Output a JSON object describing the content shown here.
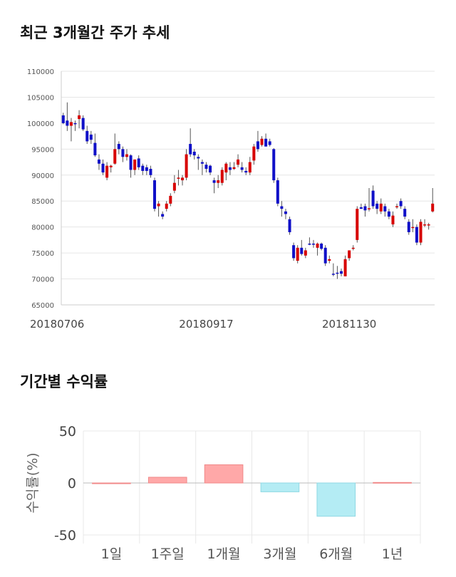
{
  "sections": {
    "candle_title": "최근 3개월간 주가 추세",
    "returns_title": "기간별 수익률"
  },
  "chart_data": [
    {
      "type": "candlestick",
      "ylim": [
        65000,
        110000
      ],
      "yticks": [
        65000,
        70000,
        75000,
        80000,
        85000,
        90000,
        95000,
        100000,
        105000,
        110000
      ],
      "xticks": [
        {
          "index": 0,
          "label": "20180706"
        },
        {
          "index": 36,
          "label": "20180917"
        },
        {
          "index": 72,
          "label": "20181130"
        }
      ],
      "colors": {
        "up": "#d70000",
        "down": "#1010c8",
        "wick": "#555555",
        "grid": "#e6e6e6"
      },
      "candles": [
        [
          101500,
          102000,
          99800,
          100000
        ],
        [
          100500,
          104000,
          98500,
          99500
        ],
        [
          99500,
          101000,
          96500,
          100200
        ],
        [
          100000,
          100500,
          98500,
          99800
        ],
        [
          100800,
          102500,
          99000,
          101500
        ],
        [
          101000,
          101500,
          98500,
          98800
        ],
        [
          98500,
          99500,
          96000,
          96500
        ],
        [
          97800,
          98500,
          96000,
          96800
        ],
        [
          96200,
          98000,
          93500,
          93800
        ],
        [
          93000,
          94000,
          91000,
          92200
        ],
        [
          92200,
          93000,
          90000,
          90500
        ],
        [
          89500,
          92500,
          89000,
          91800
        ],
        [
          91500,
          92000,
          90500,
          91800
        ],
        [
          92200,
          98000,
          92000,
          95000
        ],
        [
          96000,
          96500,
          94000,
          95000
        ],
        [
          95000,
          95500,
          92500,
          93500
        ],
        [
          93500,
          95000,
          92800,
          94000
        ],
        [
          93800,
          94000,
          89500,
          91000
        ],
        [
          91000,
          93000,
          90000,
          93000
        ],
        [
          93200,
          93800,
          91000,
          91500
        ],
        [
          91800,
          92200,
          90000,
          90800
        ],
        [
          91500,
          92000,
          90000,
          90800
        ],
        [
          91200,
          91800,
          89500,
          90000
        ],
        [
          89000,
          89500,
          83000,
          83500
        ],
        [
          84000,
          85000,
          82000,
          84500
        ],
        [
          82500,
          83000,
          81500,
          82000
        ],
        [
          83500,
          85000,
          83000,
          84500
        ],
        [
          84500,
          86500,
          84000,
          86000
        ],
        [
          87000,
          90000,
          86500,
          88500
        ],
        [
          89500,
          91000,
          88000,
          89500
        ],
        [
          89000,
          90000,
          88000,
          89500
        ],
        [
          89500,
          95000,
          89000,
          94000
        ],
        [
          96000,
          99000,
          93500,
          94000
        ],
        [
          94500,
          95000,
          93000,
          93800
        ],
        [
          93500,
          94000,
          91000,
          93200
        ],
        [
          92500,
          93000,
          90000,
          92200
        ],
        [
          92000,
          92500,
          90500,
          91200
        ],
        [
          91800,
          92000,
          90000,
          90500
        ],
        [
          89000,
          89500,
          86500,
          88500
        ],
        [
          88500,
          90000,
          87500,
          89000
        ],
        [
          88500,
          91500,
          88000,
          91000
        ],
        [
          90500,
          92500,
          89000,
          92200
        ],
        [
          91500,
          92500,
          90000,
          91000
        ],
        [
          91200,
          92500,
          91000,
          91500
        ],
        [
          92000,
          94000,
          91500,
          93000
        ],
        [
          91500,
          92500,
          90500,
          91000
        ],
        [
          90800,
          91500,
          90000,
          90500
        ],
        [
          90500,
          93500,
          90000,
          92500
        ],
        [
          92800,
          96000,
          92000,
          95500
        ],
        [
          96500,
          98500,
          94500,
          95000
        ],
        [
          95800,
          97500,
          95500,
          97000
        ],
        [
          97000,
          98000,
          95500,
          95500
        ],
        [
          96500,
          97000,
          95500,
          95800
        ],
        [
          95000,
          95200,
          88500,
          89000
        ],
        [
          89000,
          89500,
          84000,
          84500
        ],
        [
          84000,
          85000,
          82000,
          83500
        ],
        [
          83000,
          83500,
          81500,
          82500
        ],
        [
          81500,
          82000,
          78500,
          79000
        ],
        [
          76500,
          77000,
          73500,
          74000
        ],
        [
          73500,
          76500,
          73000,
          76000
        ],
        [
          76000,
          77500,
          74500,
          74800
        ],
        [
          74500,
          76000,
          74000,
          75500
        ],
        [
          76800,
          78000,
          76500,
          76600
        ],
        [
          76800,
          77500,
          76000,
          76600
        ],
        [
          76000,
          77000,
          74500,
          76800
        ],
        [
          76800,
          77000,
          75500,
          75800
        ],
        [
          76000,
          76500,
          72500,
          73000
        ],
        [
          73500,
          74500,
          73000,
          73800
        ],
        [
          71000,
          73000,
          70500,
          70800
        ],
        [
          71200,
          72500,
          70000,
          71000
        ],
        [
          71500,
          72000,
          70500,
          71000
        ],
        [
          70500,
          74500,
          70500,
          73800
        ],
        [
          74000,
          75500,
          73500,
          75500
        ],
        [
          75800,
          76500,
          75500,
          76000
        ],
        [
          77500,
          84000,
          77000,
          83500
        ],
        [
          83800,
          84500,
          83500,
          83500
        ],
        [
          84000,
          84500,
          82000,
          83200
        ],
        [
          83500,
          87500,
          83000,
          83600
        ],
        [
          87000,
          88000,
          83500,
          84000
        ],
        [
          84500,
          85000,
          82500,
          83500
        ],
        [
          83000,
          85500,
          82500,
          84500
        ],
        [
          84000,
          84500,
          82000,
          83000
        ],
        [
          83000,
          83500,
          81500,
          82000
        ],
        [
          80500,
          83000,
          80000,
          82200
        ],
        [
          83800,
          84500,
          83500,
          84000
        ],
        [
          85000,
          85500,
          83500,
          84000
        ],
        [
          83500,
          84000,
          81500,
          82000
        ],
        [
          81000,
          81500,
          78500,
          79000
        ],
        [
          80000,
          81500,
          79000,
          80000
        ],
        [
          80000,
          80500,
          76500,
          77000
        ],
        [
          77000,
          81500,
          76500,
          81000
        ],
        [
          80500,
          81500,
          80000,
          80500
        ],
        [
          80500,
          80800,
          79500,
          80500
        ],
        [
          83000,
          87500,
          82800,
          84500
        ]
      ]
    },
    {
      "type": "bar",
      "categories": [
        "1일",
        "1주일",
        "1개월",
        "3개월",
        "6개월",
        "1년"
      ],
      "values": [
        0,
        5.5,
        17.5,
        -8.5,
        -32,
        0.5
      ],
      "ylabel": "수익률(%)",
      "ylim": [
        -50,
        50
      ],
      "yticks": [
        50,
        0,
        -50
      ],
      "colors": {
        "positive": "#ffa8a8",
        "negative": "#b4ecf4",
        "positive_edge": "#f08888",
        "negative_edge": "#8fd8e4"
      }
    }
  ]
}
